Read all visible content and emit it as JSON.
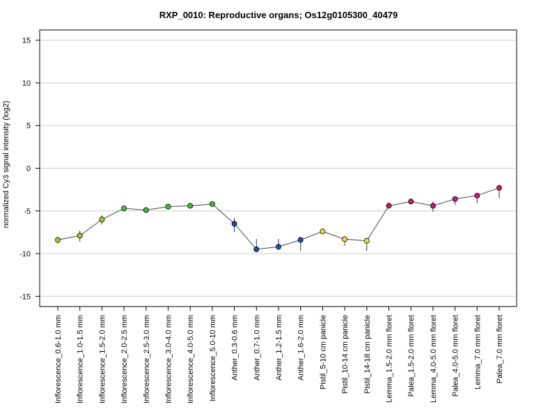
{
  "chart_data": {
    "type": "scatter",
    "title": "RXP_0010: Reproductive organs; Os12g0105300_40479",
    "xlabel": "",
    "ylabel": "normalized Cy3 signal intensity (log2)",
    "ylim": [
      -16.2,
      16.2
    ],
    "yticks": [
      -15,
      -10,
      -5,
      0,
      5,
      10,
      15
    ],
    "grid": true,
    "categories": [
      "Inflorescence_0.6-1.0 mm",
      "Inflorescence_1.0-1.5 mm",
      "Inflorescence_1.5-2.0 mm",
      "Inflorescence_2.0-2.5 mm",
      "Inflorescence_2.5-3.0 mm",
      "Inflorescence_3.0-4.0 mm",
      "Inflorescence_4.0-5.0 mm",
      "Inflorescence_5.0-10 mm",
      "Anther_0.3-0.6 mm",
      "Anther_0.7-1.0 mm",
      "Anther_1.2-1.5 mm",
      "Anther_1.6-2.0 mm",
      "Pistil_5-10 cm panicle",
      "Pistil_10-14 cm panicle",
      "Pistil_14-18 cm panicle",
      "Lemma_1.5-2.0 mm floret",
      "Palea_1.5-2.0 mm floret",
      "Lemma_4.0-5.0 mm floret",
      "Palea_4.0-5.0 mm floret",
      "Lemma_7.0 mm floret",
      "Palea_7.0 mm floret"
    ],
    "values": [
      -8.4,
      -7.9,
      -6.0,
      -4.7,
      -4.9,
      -4.5,
      -4.4,
      -4.2,
      -6.5,
      -9.5,
      -9.2,
      -8.4,
      -7.4,
      -8.3,
      -8.5,
      -4.4,
      -3.9,
      -4.4,
      -3.6,
      -3.2,
      -2.3
    ],
    "error_low": [
      -8.8,
      -8.6,
      -6.6,
      -4.8,
      -5.0,
      -4.6,
      -4.5,
      -4.3,
      -7.5,
      -9.6,
      -9.6,
      -9.7,
      -7.5,
      -9.1,
      -9.7,
      -4.6,
      -4.0,
      -5.1,
      -4.3,
      -4.1,
      -3.5
    ],
    "error_high": [
      -8.1,
      -7.3,
      -5.5,
      -4.6,
      -4.8,
      -4.4,
      -4.3,
      -4.1,
      -5.8,
      -8.3,
      -8.3,
      -8.3,
      -7.3,
      -8.0,
      -8.3,
      -4.0,
      -3.7,
      -3.9,
      -3.4,
      -3.0,
      -2.1
    ],
    "point_colors": [
      "#8fd42a",
      "#8fd42a",
      "#8fd42a",
      "#3fbf2f",
      "#3fbf2f",
      "#3fbf2f",
      "#3fbf2f",
      "#3fbf2f",
      "#1f4fb0",
      "#1f4fb0",
      "#1f4fb0",
      "#1f4fb0",
      "#e8dc3a",
      "#e8dc3a",
      "#e8dc3a",
      "#c41e7a",
      "#c41e7a",
      "#c41e7a",
      "#c41e7a",
      "#c41e7a",
      "#c41e7a"
    ],
    "line_color": "#444444"
  }
}
